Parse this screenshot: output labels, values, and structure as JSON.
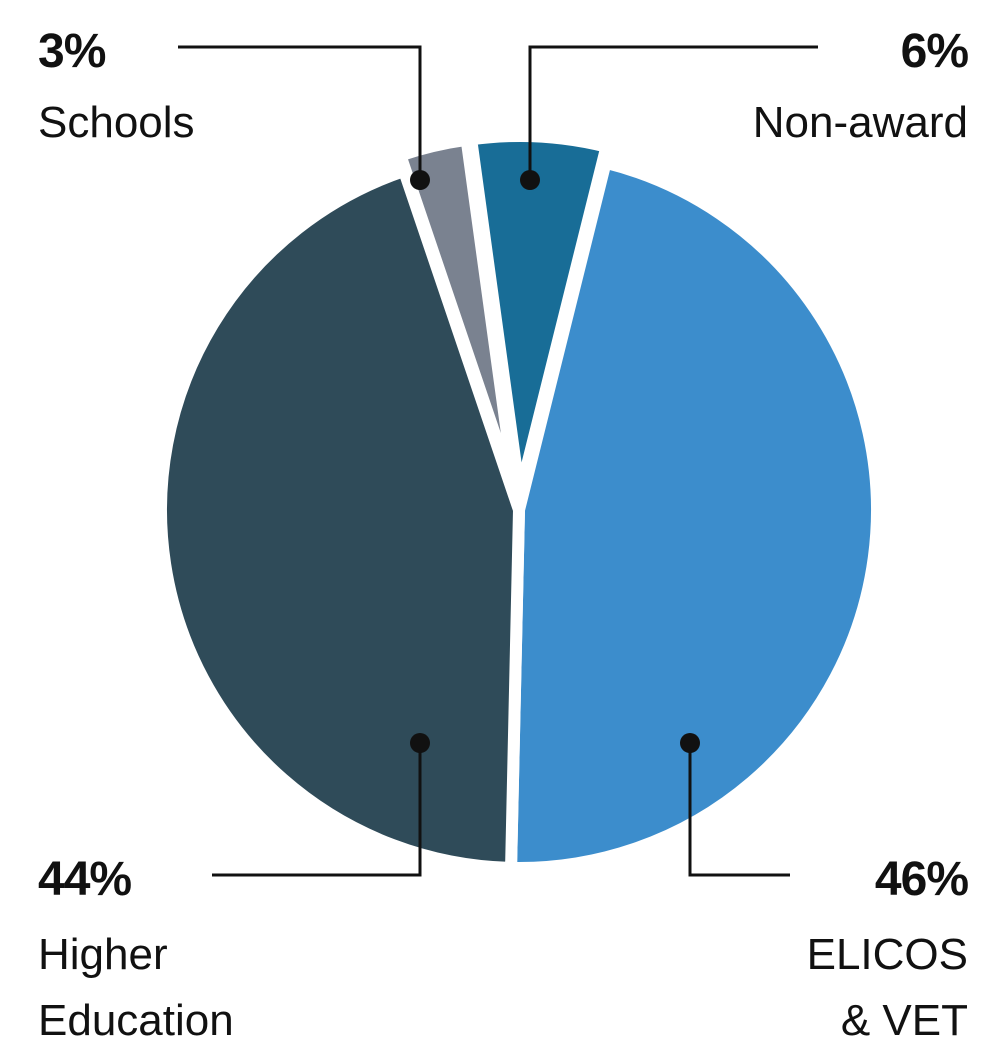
{
  "chart_data": {
    "type": "pie",
    "title": "",
    "slices": [
      {
        "label": "ELICOS & VET",
        "label_lines": [
          "ELICOS",
          "& VET"
        ],
        "value": 46,
        "display": "46%",
        "color": "#3c8dcc",
        "exploded": false
      },
      {
        "label": "Higher Education",
        "label_lines": [
          "Higher",
          "Education"
        ],
        "value": 44,
        "display": "44%",
        "color": "#2f4b59",
        "exploded": false
      },
      {
        "label": "Schools",
        "label_lines": [
          "Schools"
        ],
        "value": 3,
        "display": "3%",
        "color": "#7a8290",
        "exploded": true
      },
      {
        "label": "Non-award",
        "label_lines": [
          "Non-award"
        ],
        "value": 6,
        "display": "6%",
        "color": "#186d97",
        "exploded": true
      }
    ],
    "legend": "none",
    "label_style": "callout-lines"
  }
}
